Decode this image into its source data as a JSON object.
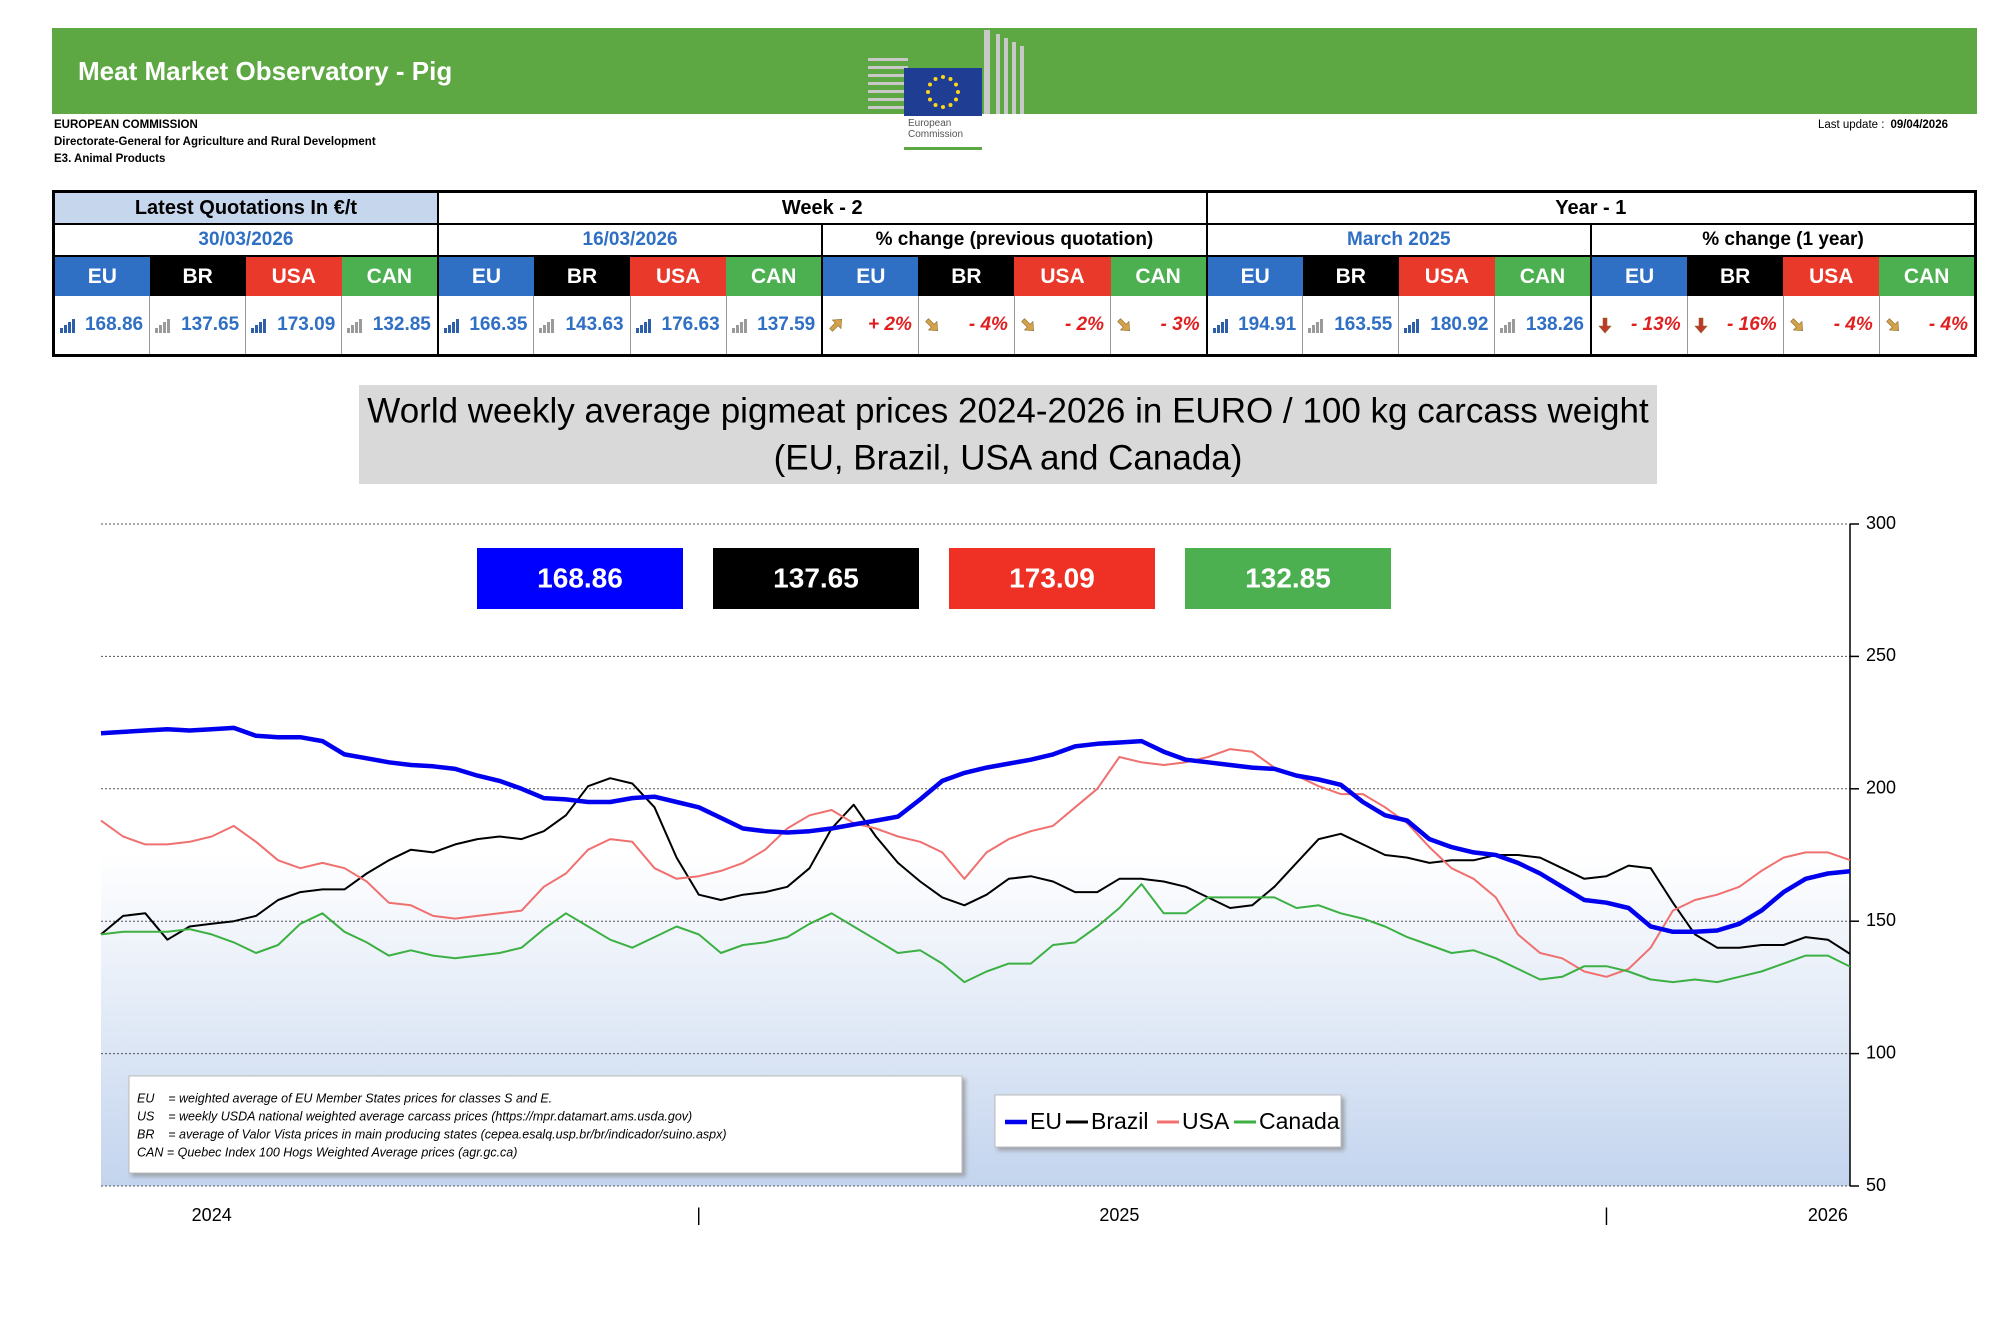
{
  "header": {
    "title": "Meat Market Observatory - Pig",
    "org": [
      "EUROPEAN COMMISSION",
      "Directorate-General for Agriculture and Rural Development",
      "E3. Animal Products"
    ],
    "logo_text": [
      "European",
      "Commission"
    ],
    "last_update_label": "Last update :",
    "last_update": "09/04/2026"
  },
  "table": {
    "header": [
      "Latest Quotations In €/t",
      "Week - 2",
      "Year - 1"
    ],
    "subheader": [
      "30/03/2026",
      "16/03/2026",
      "% change (previous quotation)",
      "March 2025",
      "% change (1 year)"
    ],
    "countries": [
      "EU",
      "BR",
      "USA",
      "CAN"
    ],
    "country_colors": [
      "#2f6fc4",
      "#000000",
      "#e8392a",
      "#4caf50"
    ],
    "values": [
      [
        168.86,
        137.65,
        173.09,
        132.85
      ],
      [
        166.35,
        143.63,
        176.63,
        137.59
      ],
      [
        "+ 2%",
        "- 4%",
        "- 2%",
        "- 3%"
      ],
      [
        194.91,
        163.55,
        180.92,
        138.26
      ],
      [
        "- 13%",
        "- 16%",
        "- 4%",
        "- 4%"
      ]
    ],
    "icons": [
      [
        "bars-blue",
        "bars-gray",
        "bars-blue",
        "bars-gray"
      ],
      [
        "bars-blue",
        "bars-gray",
        "bars-blue",
        "bars-gray"
      ],
      [
        "up-right",
        "down-right",
        "down-right",
        "down-right"
      ],
      [
        "bars-blue",
        "bars-gray",
        "bars-blue",
        "bars-gray"
      ],
      [
        "down",
        "down",
        "down-right",
        "down-right"
      ]
    ]
  },
  "chart_data": {
    "type": "line",
    "title": "World weekly average pigmeat prices 2024-2026 in EURO / 100 kg carcass weight",
    "subtitle": "(EU, Brazil, USA and Canada)",
    "categories": [
      null,
      null,
      null,
      null,
      null,
      "2024",
      null,
      null,
      null,
      null,
      null,
      null,
      null,
      null,
      null,
      null,
      null,
      null,
      null,
      null,
      null,
      null,
      null,
      null,
      null,
      null,
      null,
      "|",
      null,
      null,
      null,
      null,
      null,
      null,
      null,
      null,
      null,
      null,
      null,
      null,
      null,
      null,
      null,
      null,
      null,
      null,
      "2025",
      null,
      null,
      null,
      null,
      null,
      null,
      null,
      null,
      null,
      null,
      null,
      null,
      null,
      null,
      null,
      null,
      null,
      null,
      null,
      null,
      null,
      "|",
      null,
      null,
      null,
      null,
      null,
      null,
      null,
      null,
      null,
      "2026",
      null
    ],
    "ylim": [
      50,
      300
    ],
    "yticks": [
      50,
      100,
      150,
      200,
      250,
      300
    ],
    "grid": true,
    "legend": "bottom",
    "series": [
      {
        "name": "EU",
        "color": "#0000ee",
        "label_color": "#0000ff",
        "line_width": 4.5,
        "values": [
          221,
          221.5,
          222,
          222.5,
          222,
          222.5,
          223,
          220,
          219.5,
          219.5,
          218,
          213,
          211.5,
          210,
          209,
          208.5,
          207.5,
          205,
          203,
          200,
          196.5,
          196,
          195,
          195,
          196.5,
          197,
          195,
          193,
          189,
          185,
          184,
          183.5,
          184,
          185,
          186.5,
          188,
          189.5,
          196,
          203,
          206,
          208,
          209.5,
          211,
          213,
          216,
          217,
          217.5,
          218,
          214,
          211,
          210,
          209,
          208,
          207.5,
          205,
          203.5,
          201.5,
          195,
          190,
          188,
          181,
          178,
          176,
          175,
          172,
          168,
          163,
          158,
          157,
          155,
          148,
          146,
          146,
          146.5,
          149,
          154,
          161,
          166,
          168,
          168.86
        ]
      },
      {
        "name": "Brazil",
        "color": "#000000",
        "label_color": "#000000",
        "line_width": 2,
        "values": [
          145,
          152,
          153,
          143,
          148,
          149,
          150,
          152,
          158,
          161,
          162,
          162,
          168,
          173,
          177,
          176,
          179,
          181,
          182,
          181,
          184,
          190,
          201,
          204,
          202,
          193,
          174,
          160,
          158,
          160,
          161,
          163,
          170,
          185,
          194,
          182,
          172,
          165,
          159,
          156,
          160,
          166,
          167,
          165,
          161,
          161,
          166,
          166,
          165,
          163,
          159,
          155,
          156,
          163,
          172,
          181,
          183,
          179,
          175,
          174,
          172,
          173,
          173,
          175,
          175,
          174,
          170,
          166,
          167,
          171,
          170,
          157,
          145,
          140,
          140,
          141,
          141,
          144,
          143,
          137.65
        ]
      },
      {
        "name": "USA",
        "color": "#f07070",
        "label_color": "#ee3124",
        "line_width": 2,
        "values": [
          188,
          182,
          179,
          179,
          180,
          182,
          186,
          180,
          173,
          170,
          172,
          170,
          165,
          157,
          156,
          152,
          151,
          152,
          153,
          154,
          163,
          168,
          177,
          181,
          180,
          170,
          166,
          167,
          169,
          172,
          177,
          185,
          190,
          192,
          187,
          185,
          182,
          180,
          176,
          166,
          176,
          181,
          184,
          186,
          193,
          200,
          212,
          210,
          209,
          210,
          212,
          215,
          214,
          208,
          205,
          201,
          198,
          198,
          193,
          187,
          178,
          170,
          166,
          159,
          145,
          138,
          136,
          131,
          129,
          132,
          140,
          154,
          158,
          160,
          163,
          169,
          174,
          176,
          176,
          173.09
        ]
      },
      {
        "name": "Canada",
        "color": "#3cb043",
        "label_color": "#4caf50",
        "line_width": 2,
        "values": [
          145,
          146,
          146,
          146,
          147,
          145,
          142,
          138,
          141,
          149,
          153,
          146,
          142,
          137,
          139,
          137,
          136,
          137,
          138,
          140,
          147,
          153,
          148,
          143,
          140,
          144,
          148,
          145,
          138,
          141,
          142,
          144,
          149,
          153,
          148,
          143,
          138,
          139,
          134,
          127,
          131,
          134,
          134,
          141,
          142,
          148,
          155,
          164,
          153,
          153,
          159,
          159,
          159,
          159,
          155,
          156,
          153,
          151,
          148,
          144,
          141,
          138,
          139,
          136,
          132,
          128,
          129,
          133,
          133,
          131,
          128,
          127,
          128,
          127,
          129,
          131,
          134,
          137,
          137,
          132.85
        ]
      }
    ],
    "notes": [
      "EU    = weighted average of EU Member States prices for classes S and E.",
      "US    = weekly USDA national weighted average carcass prices (https://mpr.datamart.ams.usda.gov)",
      "BR    = average of Valor Vista prices in main producing states (cepea.esalq.usp.br/br/indicador/suino.aspx)",
      "CAN = Quebec Index 100 Hogs Weighted Average prices (agr.gc.ca)"
    ]
  }
}
